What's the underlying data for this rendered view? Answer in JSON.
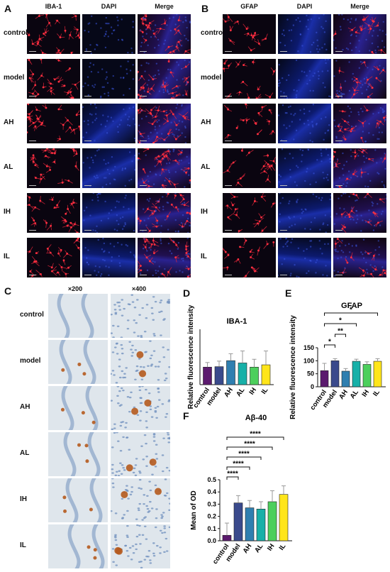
{
  "panel_letters": {
    "a": "A",
    "b": "B",
    "c": "C",
    "d": "D",
    "e": "E",
    "f": "F"
  },
  "panel_a": {
    "columns": [
      "IBA-1",
      "DAPI",
      "Merge"
    ],
    "rows": [
      "control",
      "model",
      "AH",
      "AL",
      "IH",
      "IL"
    ]
  },
  "panel_b": {
    "columns": [
      "GFAP",
      "DAPI",
      "Merge"
    ],
    "rows": [
      "control",
      "model",
      "AH",
      "AL",
      "IH",
      "IL"
    ]
  },
  "panel_c": {
    "columns": [
      "×200",
      "×400"
    ],
    "rows": [
      "control",
      "model",
      "AH",
      "AL",
      "IH",
      "IL"
    ]
  },
  "colors": {
    "control": "#5b1a6e",
    "model": "#3a4a8c",
    "AH": "#2f7fb0",
    "AL": "#17b0a8",
    "IH": "#4ccf5c",
    "IL": "#ffe51a",
    "ihc_bg": "#dfe6ec",
    "ihc_cell": "#6f8fbd",
    "ihc_plaque": "#b55a1e"
  },
  "chart_data": [
    {
      "id": "D",
      "type": "bar",
      "title": "IBA-1",
      "ylabel": "Relative fluorescence intensity",
      "xlabel": "",
      "categories": [
        "control",
        "model",
        "AH",
        "AL",
        "IH",
        "IL"
      ],
      "values": [
        38,
        39,
        52,
        47,
        38,
        43
      ],
      "errors": [
        10,
        12,
        15,
        26,
        17,
        30
      ],
      "ylim": [
        0,
        120
      ],
      "yticks": [],
      "significance": []
    },
    {
      "id": "E",
      "type": "bar",
      "title": "GFAP",
      "ylabel": "Relative fluorescence intensity",
      "xlabel": "",
      "categories": [
        "control",
        "model",
        "AH",
        "AL",
        "IH",
        "IL"
      ],
      "values": [
        62,
        100,
        60,
        98,
        86,
        98
      ],
      "errors": [
        28,
        8,
        10,
        8,
        10,
        10
      ],
      "ylim": [
        0,
        150
      ],
      "yticks": [
        "0",
        "50",
        "100",
        "150"
      ],
      "significance": [
        {
          "from": 0,
          "to": 1,
          "label": "*"
        },
        {
          "from": 1,
          "to": 2,
          "label": "**"
        },
        {
          "from": 0,
          "to": 3,
          "label": "*"
        },
        {
          "from": 0,
          "to": 5,
          "label": "*"
        }
      ]
    },
    {
      "id": "F",
      "type": "bar",
      "title": "Aβ-40",
      "ylabel": "Mean of OD",
      "xlabel": "",
      "categories": [
        "control",
        "model",
        "AH",
        "AL",
        "IH",
        "IL"
      ],
      "values": [
        0.045,
        0.31,
        0.27,
        0.26,
        0.32,
        0.38
      ],
      "errors": [
        0.1,
        0.06,
        0.06,
        0.06,
        0.09,
        0.07
      ],
      "ylim": [
        0,
        0.5
      ],
      "yticks": [
        "0.0",
        "0.1",
        "0.2",
        "0.3",
        "0.4",
        "0.5"
      ],
      "significance": [
        {
          "from": 0,
          "to": 1,
          "label": "****"
        },
        {
          "from": 0,
          "to": 2,
          "label": "****"
        },
        {
          "from": 0,
          "to": 3,
          "label": "****"
        },
        {
          "from": 0,
          "to": 4,
          "label": "****"
        },
        {
          "from": 0,
          "to": 5,
          "label": "****"
        }
      ]
    }
  ]
}
